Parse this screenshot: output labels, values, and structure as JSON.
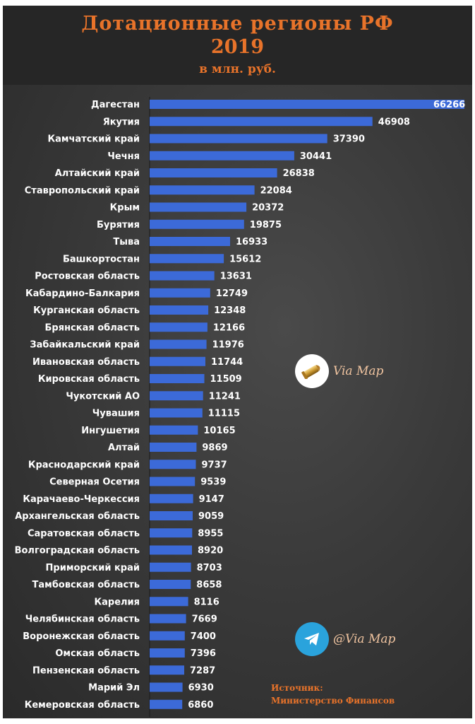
{
  "header": {
    "title_line1": "Дотационные регионы РФ",
    "title_line2": "2019",
    "subtitle": "в млн. руб."
  },
  "watermarks": {
    "top_label": "Via Map",
    "bottom_label": "@Via Map"
  },
  "source": {
    "line1": "Источник:",
    "line2": "Министерство Финансов"
  },
  "colors": {
    "bar": "#3c6ad8",
    "accent": "#e8732a",
    "label": "#ffffff"
  },
  "chart_data": {
    "type": "bar",
    "orientation": "horizontal",
    "title": "Дотационные регионы РФ 2019",
    "subtitle": "в млн. руб.",
    "categories": [
      "Дагестан",
      "Якутия",
      "Камчатский край",
      "Чечня",
      "Алтайский край",
      "Ставропольский край",
      "Крым",
      "Бурятия",
      "Тыва",
      "Башкортостан",
      "Ростовская область",
      "Кабардино-Балкария",
      "Курганская область",
      "Брянская область",
      "Забайкальский край",
      "Ивановская область",
      "Кировская область",
      "Чукотский АО",
      "Чувашия",
      "Ингушетия",
      "Алтай",
      "Краснодарский край",
      "Северная Осетия",
      "Карачаево-Черкессия",
      "Архангельская область",
      "Саратовская область",
      "Волгоградская область",
      "Приморский край",
      "Тамбовская область",
      "Карелия",
      "Челябинская область",
      "Воронежская область",
      "Омская область",
      "Пензенская область",
      "Марий Эл",
      "Кемеровская область"
    ],
    "values": [
      66266,
      46908,
      37390,
      30441,
      26838,
      22084,
      20372,
      19875,
      16933,
      15612,
      13631,
      12749,
      12348,
      12166,
      11976,
      11744,
      11509,
      11241,
      11115,
      10165,
      9869,
      9737,
      9539,
      9147,
      9059,
      8955,
      8920,
      8703,
      8658,
      8116,
      7669,
      7400,
      7396,
      7287,
      6930,
      6860
    ],
    "value_labels": [
      "66266",
      "46908",
      "37390",
      "30441",
      "26838",
      "22084",
      "20372",
      "19875",
      "16933",
      "15612",
      "13631",
      "12749",
      "12348",
      "12166",
      "11976",
      "11744",
      "11509",
      "11241",
      "11115",
      "10165",
      "9869",
      "9737",
      "9539",
      "9147",
      "9059",
      "8955",
      "8920",
      "8703",
      "8658",
      "8116",
      "7669",
      "7400",
      "7396",
      "7287",
      "6930",
      "6860"
    ],
    "xlim": [
      0,
      66266
    ],
    "grid": false,
    "data_labels": true
  }
}
